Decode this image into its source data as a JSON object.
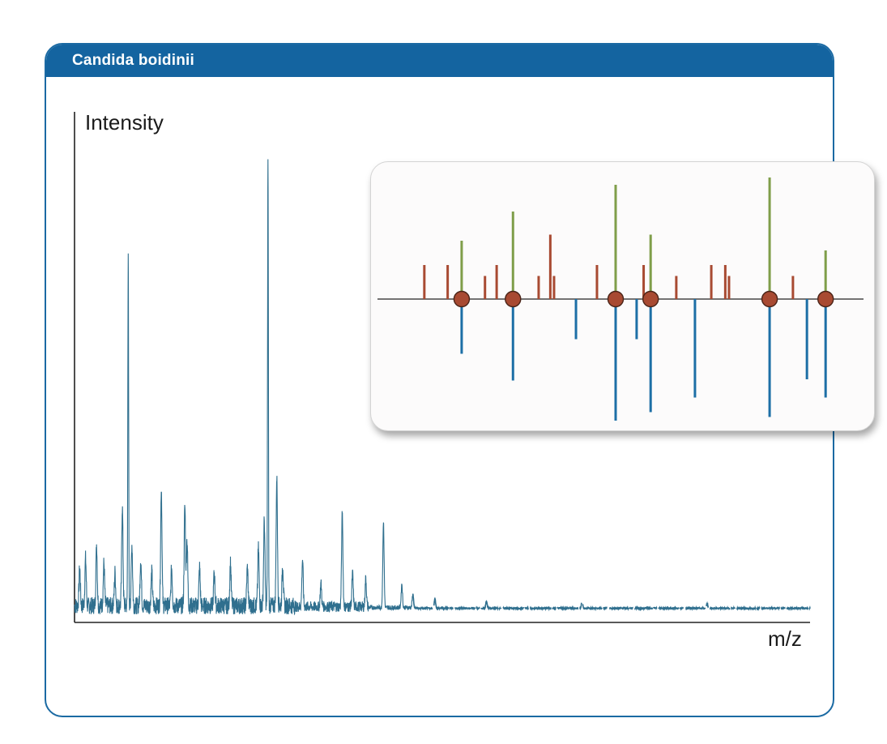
{
  "card": {
    "title": "Candida boidinii"
  },
  "chart_data": [
    {
      "type": "line",
      "title": "Candida boidinii",
      "xlabel": "m/z",
      "ylabel": "Intensity",
      "xlim": [
        0,
        1000
      ],
      "ylim": [
        0,
        100
      ],
      "grid": false,
      "color": "#2f6f8e",
      "baseline": 3,
      "noise_region": [
        0,
        460
      ],
      "dashed_region": [
        460,
        1000
      ],
      "peaks": [
        {
          "x": 7,
          "y": 8
        },
        {
          "x": 15,
          "y": 10
        },
        {
          "x": 30,
          "y": 13
        },
        {
          "x": 40,
          "y": 9
        },
        {
          "x": 55,
          "y": 7
        },
        {
          "x": 65,
          "y": 21
        },
        {
          "x": 73,
          "y": 75
        },
        {
          "x": 78,
          "y": 13
        },
        {
          "x": 90,
          "y": 10
        },
        {
          "x": 105,
          "y": 7
        },
        {
          "x": 118,
          "y": 25
        },
        {
          "x": 132,
          "y": 8
        },
        {
          "x": 150,
          "y": 21
        },
        {
          "x": 153,
          "y": 14
        },
        {
          "x": 170,
          "y": 8
        },
        {
          "x": 190,
          "y": 7
        },
        {
          "x": 212,
          "y": 9
        },
        {
          "x": 235,
          "y": 8
        },
        {
          "x": 250,
          "y": 12
        },
        {
          "x": 258,
          "y": 18
        },
        {
          "x": 263,
          "y": 96
        },
        {
          "x": 275,
          "y": 27
        },
        {
          "x": 283,
          "y": 9
        },
        {
          "x": 310,
          "y": 10
        },
        {
          "x": 335,
          "y": 5
        },
        {
          "x": 364,
          "y": 20
        },
        {
          "x": 378,
          "y": 7
        },
        {
          "x": 396,
          "y": 6
        },
        {
          "x": 420,
          "y": 18
        },
        {
          "x": 445,
          "y": 5
        },
        {
          "x": 460,
          "y": 3
        },
        {
          "x": 490,
          "y": 2
        },
        {
          "x": 560,
          "y": 1.5
        },
        {
          "x": 690,
          "y": 1.5
        },
        {
          "x": 860,
          "y": 1
        }
      ]
    },
    {
      "type": "bar",
      "title": "",
      "xlabel": "",
      "ylabel": "",
      "xlim": [
        0,
        100
      ],
      "ylim": [
        -100,
        100
      ],
      "colors": {
        "reference": "#a84a32",
        "matched": "#7f9e4a",
        "sample": "#1d6fa6",
        "match_marker": "#a84a32"
      },
      "reference_peaks": [
        {
          "x": 9,
          "y": 28
        },
        {
          "x": 14,
          "y": 28
        },
        {
          "x": 22,
          "y": 19
        },
        {
          "x": 24.5,
          "y": 28
        },
        {
          "x": 33.5,
          "y": 19
        },
        {
          "x": 36,
          "y": 53
        },
        {
          "x": 36.8,
          "y": 19
        },
        {
          "x": 46,
          "y": 28
        },
        {
          "x": 56,
          "y": 28
        },
        {
          "x": 63,
          "y": 19
        },
        {
          "x": 70.5,
          "y": 28
        },
        {
          "x": 73.5,
          "y": 28
        },
        {
          "x": 74.3,
          "y": 19
        },
        {
          "x": 88,
          "y": 19
        }
      ],
      "matched_peaks": [
        {
          "x": 17,
          "y": 48
        },
        {
          "x": 28,
          "y": 72
        },
        {
          "x": 50,
          "y": 94
        },
        {
          "x": 57.5,
          "y": 53
        },
        {
          "x": 83,
          "y": 100
        },
        {
          "x": 95,
          "y": 40
        }
      ],
      "sample_peaks": [
        {
          "x": 17,
          "y": -45
        },
        {
          "x": 28,
          "y": -67
        },
        {
          "x": 41.5,
          "y": -33
        },
        {
          "x": 50,
          "y": -100
        },
        {
          "x": 54.5,
          "y": -33
        },
        {
          "x": 57.5,
          "y": -93
        },
        {
          "x": 67,
          "y": -81
        },
        {
          "x": 83,
          "y": -97
        },
        {
          "x": 91,
          "y": -66
        },
        {
          "x": 95,
          "y": -81
        }
      ],
      "matches": [
        17,
        28,
        50,
        57.5,
        83,
        95
      ]
    }
  ]
}
